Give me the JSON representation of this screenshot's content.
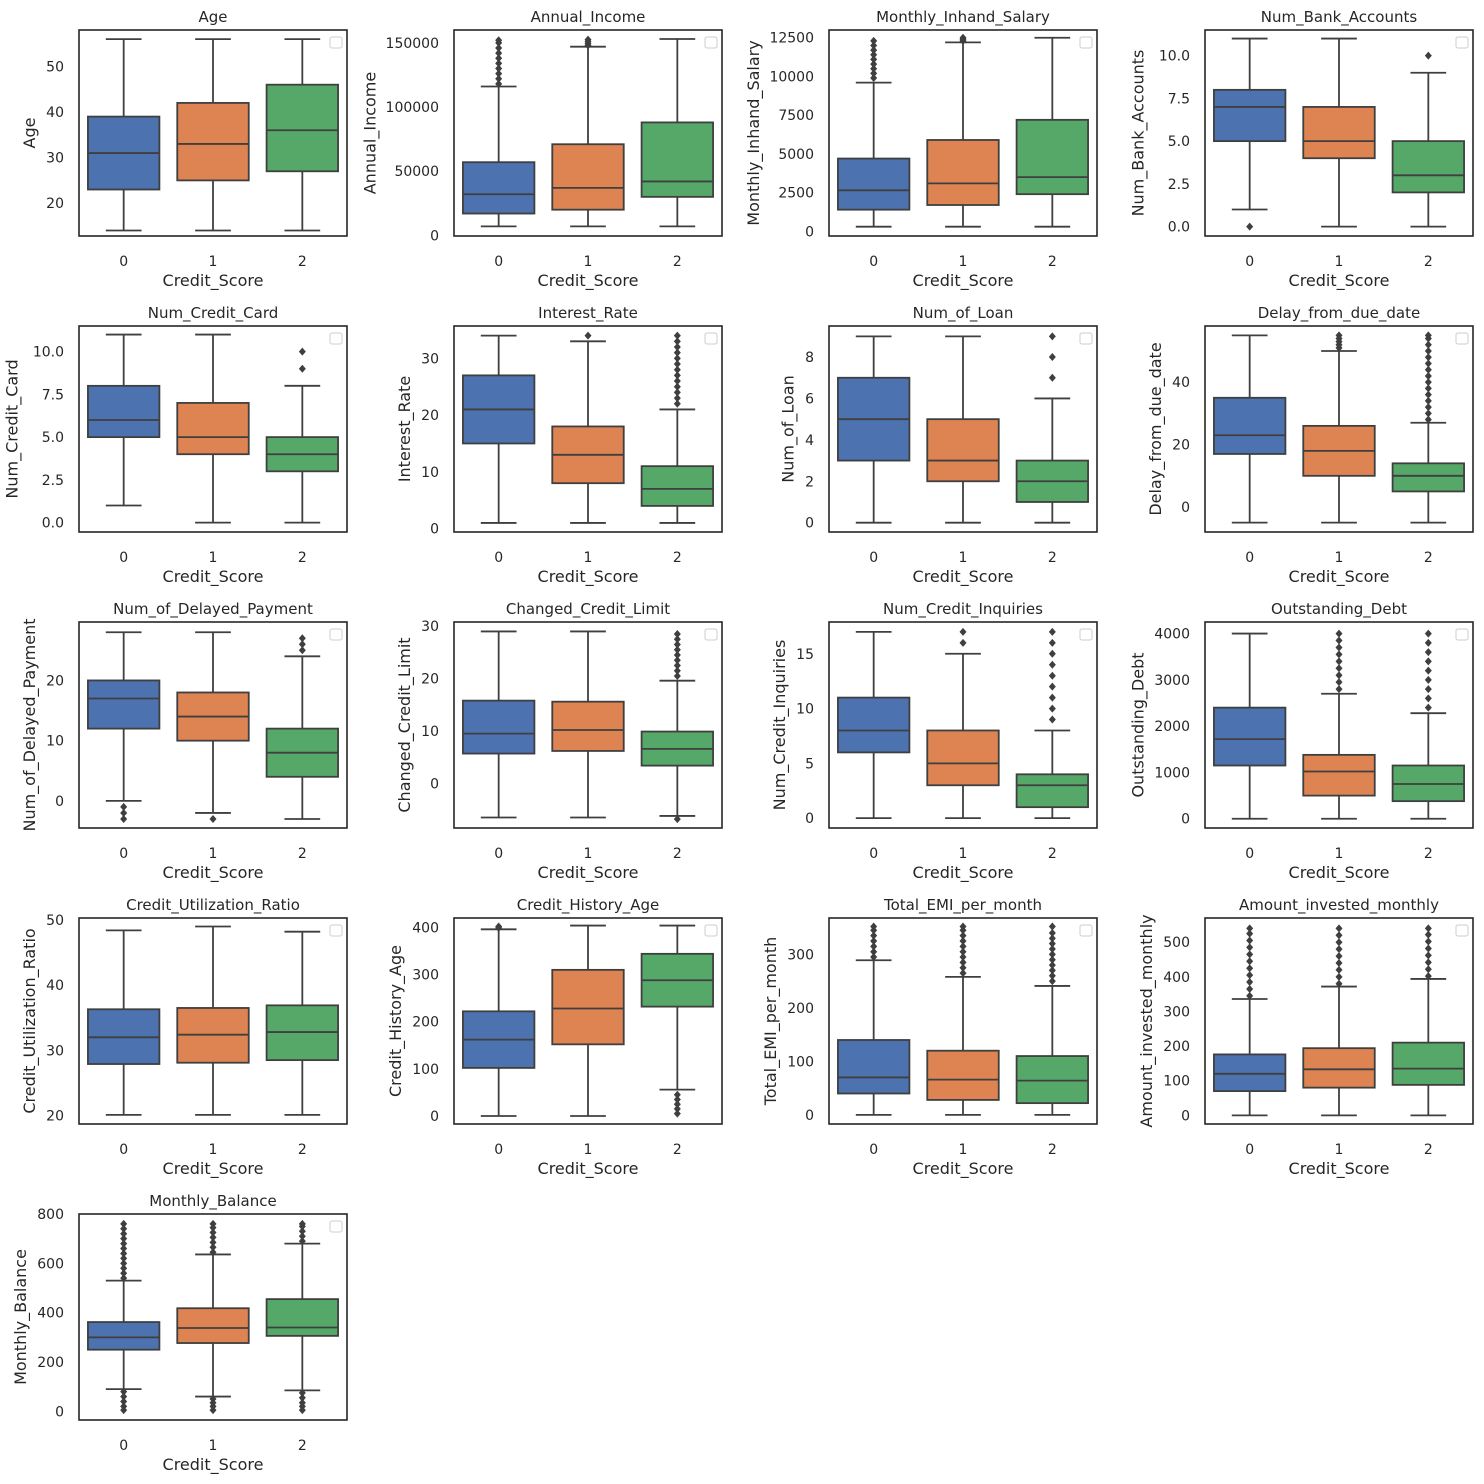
{
  "figure": {
    "palette": [
      "#4c72b0",
      "#dd8452",
      "#55a868"
    ],
    "line_color": "#3f3f3f",
    "frame_color": "#262626",
    "background": "#ffffff"
  },
  "chart_data": [
    {
      "type": "box",
      "title": "Age",
      "xlabel": "Credit_Score",
      "ylabel": "Age",
      "categories": [
        "0",
        "1",
        "2"
      ],
      "ylim": [
        12.8,
        58.0
      ],
      "yticks": [
        20,
        30,
        40,
        50
      ],
      "boxes": [
        {
          "whislo": 14,
          "q1": 23,
          "med": 31,
          "q3": 39,
          "whishi": 56,
          "fliers": []
        },
        {
          "whislo": 14,
          "q1": 25,
          "med": 33,
          "q3": 42,
          "whishi": 56,
          "fliers": []
        },
        {
          "whislo": 14,
          "q1": 27,
          "med": 36,
          "q3": 46,
          "whishi": 56,
          "fliers": []
        }
      ]
    },
    {
      "type": "box",
      "title": "Annual_Income",
      "xlabel": "Credit_Score",
      "ylabel": "Annual_Income",
      "categories": [
        "0",
        "1",
        "2"
      ],
      "ylim": [
        -500,
        160000
      ],
      "yticks": [
        0,
        50000,
        100000,
        150000
      ],
      "boxes": [
        {
          "whislo": 7000,
          "q1": 17000,
          "med": 32000,
          "q3": 57000,
          "whishi": 116000,
          "fliers": [
            118000,
            122000,
            126000,
            130000,
            134000,
            138000,
            142000,
            146000,
            150000,
            152000
          ]
        },
        {
          "whislo": 7000,
          "q1": 20000,
          "med": 37000,
          "q3": 71000,
          "whishi": 147000,
          "fliers": [
            148000,
            149500,
            151000,
            152500
          ]
        },
        {
          "whislo": 7000,
          "q1": 30000,
          "med": 42000,
          "q3": 88000,
          "whishi": 153000,
          "fliers": []
        }
      ]
    },
    {
      "type": "box",
      "title": "Monthly_Inhand_Salary",
      "xlabel": "Credit_Score",
      "ylabel": "Monthly_Inhand_Salary",
      "categories": [
        "0",
        "1",
        "2"
      ],
      "ylim": [
        -300,
        13000
      ],
      "yticks": [
        0,
        2500,
        5000,
        7500,
        10000,
        12500
      ],
      "boxes": [
        {
          "whislo": 300,
          "q1": 1400,
          "med": 2650,
          "q3": 4700,
          "whishi": 9600,
          "fliers": [
            9900,
            10200,
            10500,
            10800,
            11100,
            11400,
            11700,
            12000,
            12300
          ]
        },
        {
          "whislo": 300,
          "q1": 1700,
          "med": 3100,
          "q3": 5900,
          "whishi": 12200,
          "fliers": [
            12300,
            12400,
            12500
          ]
        },
        {
          "whislo": 300,
          "q1": 2400,
          "med": 3500,
          "q3": 7200,
          "whishi": 12500,
          "fliers": []
        }
      ]
    },
    {
      "type": "box",
      "title": "Num_Bank_Accounts",
      "xlabel": "Credit_Score",
      "ylabel": "Num_Bank_Accounts",
      "categories": [
        "0",
        "1",
        "2"
      ],
      "ylim": [
        -0.55,
        11.5
      ],
      "yticks": [
        0.0,
        2.5,
        5.0,
        7.5,
        10.0
      ],
      "tick_decimals": 1,
      "boxes": [
        {
          "whislo": 1,
          "q1": 5,
          "med": 7,
          "q3": 8,
          "whishi": 11,
          "fliers": [
            0
          ]
        },
        {
          "whislo": 0,
          "q1": 4,
          "med": 5,
          "q3": 7,
          "whishi": 11,
          "fliers": []
        },
        {
          "whislo": 0,
          "q1": 2,
          "med": 3,
          "q3": 5,
          "whishi": 9,
          "fliers": [
            10
          ]
        }
      ]
    },
    {
      "type": "box",
      "title": "Num_Credit_Card",
      "xlabel": "Credit_Score",
      "ylabel": "Num_Credit_Card",
      "categories": [
        "0",
        "1",
        "2"
      ],
      "ylim": [
        -0.55,
        11.5
      ],
      "yticks": [
        0.0,
        2.5,
        5.0,
        7.5,
        10.0
      ],
      "tick_decimals": 1,
      "boxes": [
        {
          "whislo": 1,
          "q1": 5,
          "med": 6,
          "q3": 8,
          "whishi": 11,
          "fliers": []
        },
        {
          "whislo": 0,
          "q1": 4,
          "med": 5,
          "q3": 7,
          "whishi": 11,
          "fliers": []
        },
        {
          "whislo": 0,
          "q1": 3,
          "med": 4,
          "q3": 5,
          "whishi": 8,
          "fliers": [
            9,
            10
          ]
        }
      ]
    },
    {
      "type": "box",
      "title": "Interest_Rate",
      "xlabel": "Credit_Score",
      "ylabel": "Interest_Rate",
      "categories": [
        "0",
        "1",
        "2"
      ],
      "ylim": [
        -0.6,
        35.7
      ],
      "yticks": [
        0,
        10,
        20,
        30
      ],
      "boxes": [
        {
          "whislo": 1,
          "q1": 15,
          "med": 21,
          "q3": 27,
          "whishi": 34,
          "fliers": []
        },
        {
          "whislo": 1,
          "q1": 8,
          "med": 13,
          "q3": 18,
          "whishi": 33,
          "fliers": [
            34
          ]
        },
        {
          "whislo": 1,
          "q1": 4,
          "med": 7,
          "q3": 11,
          "whishi": 21,
          "fliers": [
            22,
            23,
            24,
            25,
            26,
            27,
            28,
            29,
            30,
            31,
            32,
            33,
            34
          ]
        }
      ]
    },
    {
      "type": "box",
      "title": "Num_of_Loan",
      "xlabel": "Credit_Score",
      "ylabel": "Num_of_Loan",
      "categories": [
        "0",
        "1",
        "2"
      ],
      "ylim": [
        -0.45,
        9.5
      ],
      "yticks": [
        0,
        2,
        4,
        6,
        8
      ],
      "boxes": [
        {
          "whislo": 0,
          "q1": 3,
          "med": 5,
          "q3": 7,
          "whishi": 9,
          "fliers": []
        },
        {
          "whislo": 0,
          "q1": 2,
          "med": 3,
          "q3": 5,
          "whishi": 9,
          "fliers": []
        },
        {
          "whislo": 0,
          "q1": 1,
          "med": 2,
          "q3": 3,
          "whishi": 6,
          "fliers": [
            7,
            8,
            9
          ]
        }
      ]
    },
    {
      "type": "box",
      "title": "Delay_from_due_date",
      "xlabel": "Credit_Score",
      "ylabel": "Delay_from_due_date",
      "categories": [
        "0",
        "1",
        "2"
      ],
      "ylim": [
        -8,
        58
      ],
      "yticks": [
        0,
        20,
        40
      ],
      "boxes": [
        {
          "whislo": -5,
          "q1": 17,
          "med": 23,
          "q3": 35,
          "whishi": 55,
          "fliers": []
        },
        {
          "whislo": -5,
          "q1": 10,
          "med": 18,
          "q3": 26,
          "whishi": 50,
          "fliers": [
            51,
            52,
            53,
            54,
            55
          ]
        },
        {
          "whislo": -5,
          "q1": 5,
          "med": 10,
          "q3": 14,
          "whishi": 27,
          "fliers": [
            28,
            30,
            32,
            34,
            36,
            38,
            40,
            42,
            44,
            46,
            48,
            50,
            52,
            54,
            55
          ]
        }
      ]
    },
    {
      "type": "box",
      "title": "Num_of_Delayed_Payment",
      "xlabel": "Credit_Score",
      "ylabel": "Num_of_Delayed_Payment",
      "categories": [
        "0",
        "1",
        "2"
      ],
      "ylim": [
        -4.5,
        29.7
      ],
      "yticks": [
        0,
        10,
        20
      ],
      "boxes": [
        {
          "whislo": 0,
          "q1": 12,
          "med": 17,
          "q3": 20,
          "whishi": 28,
          "fliers": [
            -1,
            -2,
            -3
          ]
        },
        {
          "whislo": -2,
          "q1": 10,
          "med": 14,
          "q3": 18,
          "whishi": 28,
          "fliers": [
            -3
          ]
        },
        {
          "whislo": -3,
          "q1": 4,
          "med": 8,
          "q3": 12,
          "whishi": 24,
          "fliers": [
            25,
            26,
            27
          ]
        }
      ]
    },
    {
      "type": "box",
      "title": "Changed_Credit_Limit",
      "xlabel": "Credit_Score",
      "ylabel": "Changed_Credit_Limit",
      "categories": [
        "0",
        "1",
        "2"
      ],
      "ylim": [
        -8.5,
        30.8
      ],
      "yticks": [
        0,
        10,
        20,
        30
      ],
      "boxes": [
        {
          "whislo": -6.5,
          "q1": 5.7,
          "med": 9.5,
          "q3": 15.8,
          "whishi": 29,
          "fliers": []
        },
        {
          "whislo": -6.5,
          "q1": 6.2,
          "med": 10.2,
          "q3": 15.6,
          "whishi": 29,
          "fliers": []
        },
        {
          "whislo": -6.2,
          "q1": 3.4,
          "med": 6.6,
          "q3": 9.9,
          "whishi": 19.6,
          "fliers": [
            20.5,
            21.5,
            22.5,
            23.5,
            24.5,
            25.5,
            26.5,
            27.5,
            28.5,
            -6.8
          ]
        }
      ]
    },
    {
      "type": "box",
      "title": "Num_Credit_Inquiries",
      "xlabel": "Credit_Score",
      "ylabel": "Num_Credit_Inquiries",
      "categories": [
        "0",
        "1",
        "2"
      ],
      "ylim": [
        -0.9,
        17.9
      ],
      "yticks": [
        0,
        5,
        10,
        15
      ],
      "boxes": [
        {
          "whislo": 0,
          "q1": 6,
          "med": 8,
          "q3": 11,
          "whishi": 17,
          "fliers": []
        },
        {
          "whislo": 0,
          "q1": 3,
          "med": 5,
          "q3": 8,
          "whishi": 15,
          "fliers": [
            16,
            17
          ]
        },
        {
          "whislo": 0,
          "q1": 1,
          "med": 3,
          "q3": 4,
          "whishi": 8,
          "fliers": [
            9,
            10,
            11,
            12,
            13,
            14,
            15,
            16,
            17
          ]
        }
      ]
    },
    {
      "type": "box",
      "title": "Outstanding_Debt",
      "xlabel": "Credit_Score",
      "ylabel": "Outstanding_Debt",
      "categories": [
        "0",
        "1",
        "2"
      ],
      "ylim": [
        -200,
        4250
      ],
      "yticks": [
        0,
        1000,
        2000,
        3000,
        4000
      ],
      "boxes": [
        {
          "whislo": 0,
          "q1": 1150,
          "med": 1720,
          "q3": 2400,
          "whishi": 4000,
          "fliers": []
        },
        {
          "whislo": 0,
          "q1": 500,
          "med": 1020,
          "q3": 1380,
          "whishi": 2700,
          "fliers": [
            2800,
            2950,
            3100,
            3250,
            3400,
            3550,
            3700,
            3850,
            4000
          ]
        },
        {
          "whislo": 0,
          "q1": 380,
          "med": 750,
          "q3": 1150,
          "whishi": 2280,
          "fliers": [
            2400,
            2600,
            2800,
            3000,
            3200,
            3400,
            3600,
            3800,
            4000
          ]
        }
      ]
    },
    {
      "type": "box",
      "title": "Credit_Utilization_Ratio",
      "xlabel": "Credit_Score",
      "ylabel": "Credit_Utilization_Ratio",
      "categories": [
        "0",
        "1",
        "2"
      ],
      "ylim": [
        18.7,
        50.3
      ],
      "yticks": [
        20,
        30,
        40,
        50
      ],
      "boxes": [
        {
          "whislo": 20.1,
          "q1": 27.9,
          "med": 32.0,
          "q3": 36.3,
          "whishi": 48.4,
          "fliers": []
        },
        {
          "whislo": 20.1,
          "q1": 28.1,
          "med": 32.4,
          "q3": 36.5,
          "whishi": 49.0,
          "fliers": []
        },
        {
          "whislo": 20.1,
          "q1": 28.5,
          "med": 32.8,
          "q3": 36.9,
          "whishi": 48.2,
          "fliers": []
        }
      ]
    },
    {
      "type": "box",
      "title": "Credit_History_Age",
      "xlabel": "Credit_Score",
      "ylabel": "Credit_History_Age",
      "categories": [
        "0",
        "1",
        "2"
      ],
      "ylim": [
        -17,
        420
      ],
      "yticks": [
        0,
        100,
        200,
        300,
        400
      ],
      "boxes": [
        {
          "whislo": 0,
          "q1": 102,
          "med": 162,
          "q3": 222,
          "whishi": 396,
          "fliers": [
            399,
            402
          ]
        },
        {
          "whislo": 0,
          "q1": 152,
          "med": 228,
          "q3": 310,
          "whishi": 404,
          "fliers": []
        },
        {
          "whislo": 56,
          "q1": 232,
          "med": 288,
          "q3": 344,
          "whishi": 404,
          "fliers": [
            45,
            35,
            25,
            15,
            5
          ]
        }
      ]
    },
    {
      "type": "box",
      "title": "Total_EMI_per_month",
      "xlabel": "Credit_Score",
      "ylabel": "Total_EMI_per_month",
      "categories": [
        "0",
        "1",
        "2"
      ],
      "ylim": [
        -17,
        368
      ],
      "yticks": [
        0,
        100,
        200,
        300
      ],
      "boxes": [
        {
          "whislo": 0,
          "q1": 40,
          "med": 70,
          "q3": 140,
          "whishi": 289,
          "fliers": [
            295,
            305,
            315,
            325,
            335,
            345,
            352
          ]
        },
        {
          "whislo": 0,
          "q1": 28,
          "med": 66,
          "q3": 120,
          "whishi": 258,
          "fliers": [
            265,
            275,
            285,
            295,
            305,
            315,
            325,
            335,
            345,
            352
          ]
        },
        {
          "whislo": 0,
          "q1": 22,
          "med": 64,
          "q3": 110,
          "whishi": 241,
          "fliers": [
            250,
            260,
            270,
            280,
            290,
            300,
            310,
            320,
            330,
            340,
            352
          ]
        }
      ]
    },
    {
      "type": "box",
      "title": "Amount_invested_monthly",
      "xlabel": "Credit_Score",
      "ylabel": "Amount_invested_monthly",
      "categories": [
        "0",
        "1",
        "2"
      ],
      "ylim": [
        -25,
        570
      ],
      "yticks": [
        0,
        100,
        200,
        300,
        400,
        500
      ],
      "boxes": [
        {
          "whislo": 0,
          "q1": 70,
          "med": 120,
          "q3": 176,
          "whishi": 336,
          "fliers": [
            345,
            365,
            385,
            405,
            425,
            445,
            465,
            485,
            505,
            525,
            540
          ]
        },
        {
          "whislo": 0,
          "q1": 80,
          "med": 133,
          "q3": 194,
          "whishi": 372,
          "fliers": [
            380,
            400,
            420,
            440,
            460,
            480,
            500,
            520,
            540
          ]
        },
        {
          "whislo": 0,
          "q1": 88,
          "med": 135,
          "q3": 210,
          "whishi": 394,
          "fliers": [
            402,
            422,
            442,
            462,
            482,
            502,
            522,
            540
          ]
        }
      ]
    },
    {
      "type": "box",
      "title": "Monthly_Balance",
      "xlabel": "Credit_Score",
      "ylabel": "Monthly_Balance",
      "categories": [
        "0",
        "1",
        "2"
      ],
      "ylim": [
        -35,
        800
      ],
      "yticks": [
        0,
        200,
        400,
        600,
        800
      ],
      "boxes": [
        {
          "whislo": 90,
          "q1": 250,
          "med": 300,
          "q3": 362,
          "whishi": 530,
          "fliers": [
            540,
            560,
            580,
            600,
            620,
            640,
            660,
            680,
            700,
            720,
            740,
            760,
            80,
            60,
            40,
            20,
            5
          ]
        },
        {
          "whislo": 60,
          "q1": 277,
          "med": 338,
          "q3": 418,
          "whishi": 636,
          "fliers": [
            645,
            665,
            685,
            705,
            725,
            745,
            760,
            50,
            35,
            20,
            5
          ]
        },
        {
          "whislo": 85,
          "q1": 306,
          "med": 340,
          "q3": 455,
          "whishi": 680,
          "fliers": [
            690,
            710,
            730,
            750,
            760,
            75,
            55,
            35,
            20,
            5
          ]
        }
      ]
    }
  ]
}
